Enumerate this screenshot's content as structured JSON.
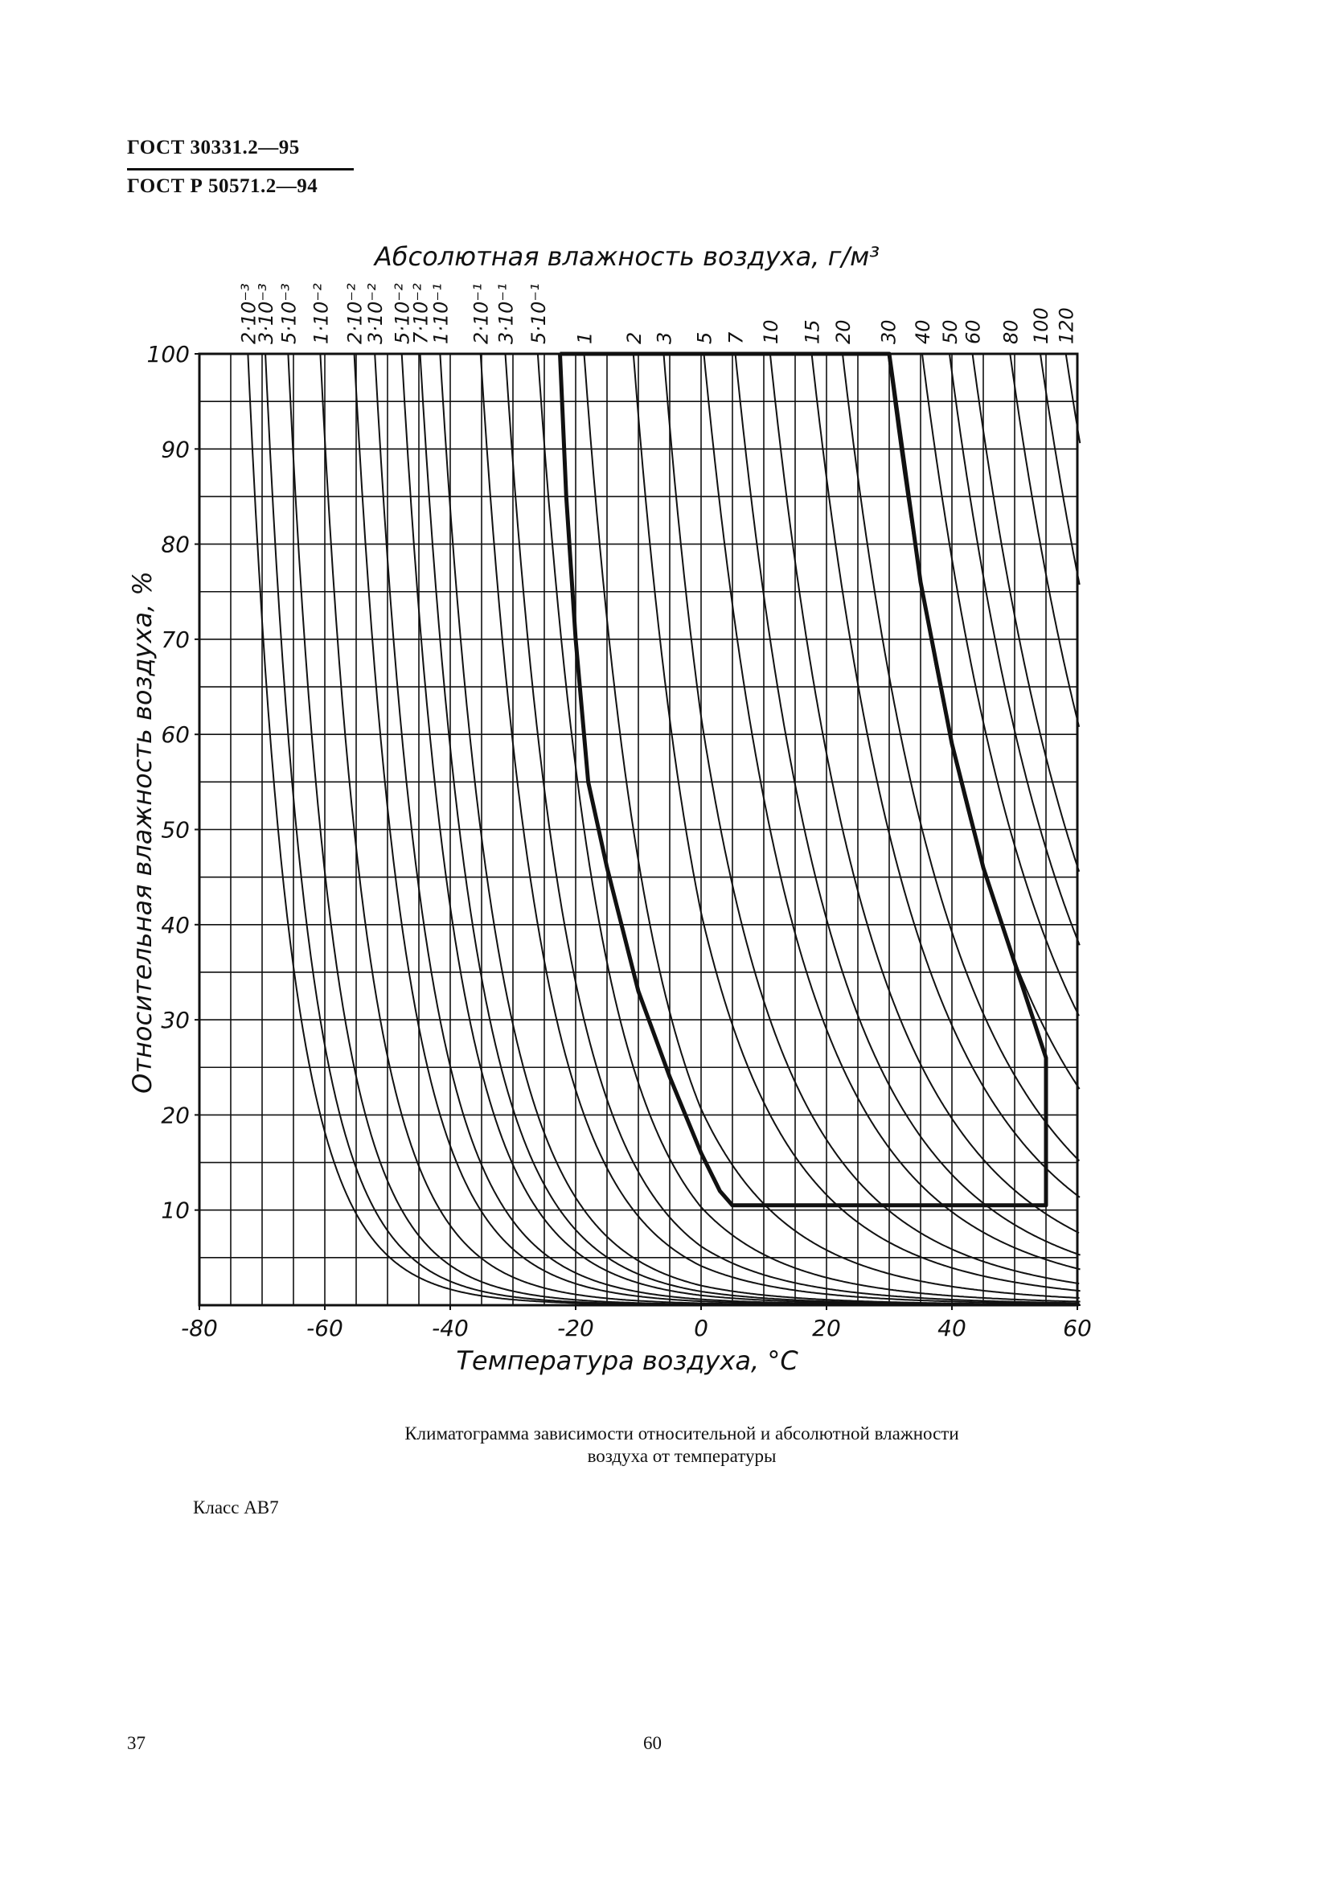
{
  "header": {
    "lines": [
      "ГОСТ 30331.2—95",
      "ГОСТ Р 50571.2—94"
    ]
  },
  "chart_data": {
    "type": "climatogram",
    "top_axis_title": "Абсолютная влажность воздуха, г/м³",
    "x_axis_title": "Температура воздуха, °C",
    "y_axis_title": "Относительная влажность воздуха, %",
    "xlim": [
      -80,
      60
    ],
    "ylim": [
      0,
      100
    ],
    "xticks": [
      -80,
      -60,
      -40,
      -20,
      0,
      20,
      40,
      60
    ],
    "yticks": [
      10,
      20,
      30,
      40,
      50,
      60,
      70,
      80,
      90,
      100
    ],
    "grid_step": {
      "x": 5,
      "y": 5
    },
    "color": "#111111",
    "curves": [
      {
        "value": 0.002,
        "label": "2·10⁻³"
      },
      {
        "value": 0.003,
        "label": "3·10⁻³"
      },
      {
        "value": 0.005,
        "label": "5·10⁻³"
      },
      {
        "value": 0.01,
        "label": "1·10⁻²"
      },
      {
        "value": 0.02,
        "label": "2·10⁻²"
      },
      {
        "value": 0.03,
        "label": "3·10⁻²"
      },
      {
        "value": 0.05,
        "label": "5·10⁻²"
      },
      {
        "value": 0.07,
        "label": "7·10⁻²"
      },
      {
        "value": 0.1,
        "label": "1·10⁻¹"
      },
      {
        "value": 0.2,
        "label": "2·10⁻¹"
      },
      {
        "value": 0.3,
        "label": "3·10⁻¹"
      },
      {
        "value": 0.5,
        "label": "5·10⁻¹"
      },
      1,
      2,
      3,
      5,
      7,
      10,
      15,
      20,
      30,
      40,
      50,
      60,
      80,
      100,
      120
    ],
    "boundary": {
      "x": [
        -22.5,
        30,
        35,
        40,
        45,
        50,
        55,
        55,
        5,
        3,
        0,
        -5,
        -10,
        -15,
        -18,
        -20,
        -21.5,
        -22.5
      ],
      "values": [
        100,
        100,
        76,
        59,
        46,
        36,
        26,
        10.5,
        10.5,
        12,
        16,
        24,
        33,
        46,
        55,
        70,
        85,
        100
      ]
    }
  },
  "caption": [
    "Климатограмма зависимости относительной и абсолютной влажности",
    "воздуха от температуры"
  ],
  "class_label": "Класс АВ7",
  "footer": {
    "left": "37",
    "center": "60"
  }
}
